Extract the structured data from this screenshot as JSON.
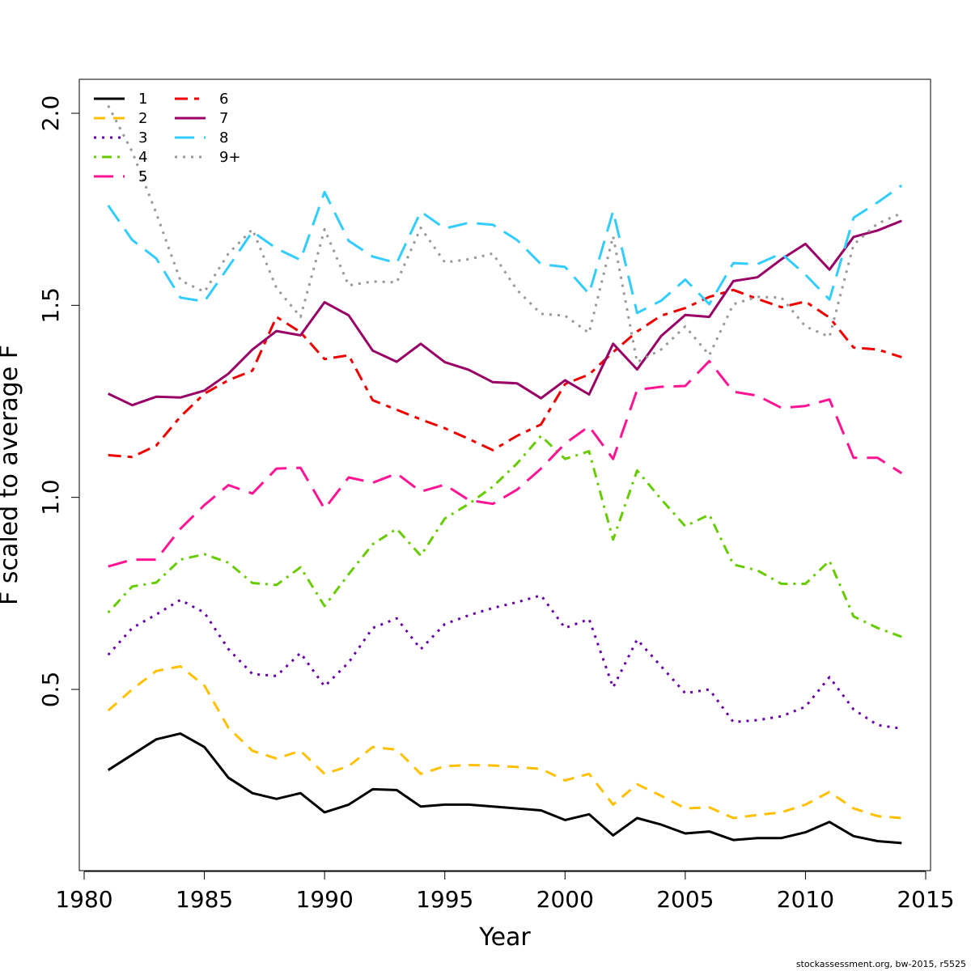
{
  "credit": "stockassessment.org, bw-2015, r5525",
  "chart_data": {
    "type": "line",
    "xlabel": "Year",
    "ylabel": "F scaled to average F",
    "xlim": [
      1980,
      2015
    ],
    "ylim": [
      0.05,
      2.1
    ],
    "x_ticks": [
      1980,
      1985,
      1990,
      1995,
      2000,
      2005,
      2010,
      2015
    ],
    "y_ticks": [
      0.5,
      1.0,
      1.5,
      2.0
    ],
    "x_tick_labels": [
      "1980",
      "1985",
      "1990",
      "1995",
      "2000",
      "2005",
      "2010",
      "2015"
    ],
    "y_tick_labels": [
      "0.5",
      "1.0",
      "1.5",
      "2.0"
    ],
    "legend_position": "top-left",
    "x": [
      1981,
      1982,
      1983,
      1984,
      1985,
      1986,
      1987,
      1988,
      1989,
      1990,
      1991,
      1992,
      1993,
      1994,
      1995,
      1996,
      1997,
      1998,
      1999,
      2000,
      2001,
      2002,
      2003,
      2004,
      2005,
      2006,
      2007,
      2008,
      2009,
      2010,
      2011,
      2012,
      2013,
      2014
    ],
    "series": [
      {
        "name": "1",
        "color": "#000000",
        "dash": "solid",
        "values": [
          0.29,
          0.33,
          0.37,
          0.385,
          0.35,
          0.27,
          0.23,
          0.215,
          0.23,
          0.18,
          0.2,
          0.24,
          0.238,
          0.195,
          0.2,
          0.2,
          0.195,
          0.19,
          0.185,
          0.16,
          0.175,
          0.12,
          0.165,
          0.148,
          0.125,
          0.13,
          0.108,
          0.113,
          0.113,
          0.128,
          0.155,
          0.118,
          0.105,
          0.1
        ]
      },
      {
        "name": "2",
        "color": "#FFC000",
        "dash": "dashed",
        "values": [
          0.445,
          0.5,
          0.548,
          0.56,
          0.51,
          0.4,
          0.34,
          0.32,
          0.34,
          0.28,
          0.3,
          0.35,
          0.343,
          0.28,
          0.3,
          0.303,
          0.302,
          0.298,
          0.293,
          0.263,
          0.28,
          0.2,
          0.253,
          0.223,
          0.19,
          0.193,
          0.165,
          0.173,
          0.18,
          0.2,
          0.233,
          0.19,
          0.17,
          0.165
        ]
      },
      {
        "name": "3",
        "color": "#6A00A8",
        "dash": "dotted",
        "values": [
          0.59,
          0.66,
          0.695,
          0.733,
          0.7,
          0.605,
          0.54,
          0.535,
          0.595,
          0.508,
          0.57,
          0.66,
          0.685,
          0.605,
          0.67,
          0.693,
          0.712,
          0.727,
          0.745,
          0.66,
          0.683,
          0.505,
          0.63,
          0.56,
          0.49,
          0.5,
          0.415,
          0.42,
          0.43,
          0.455,
          0.532,
          0.448,
          0.407,
          0.398
        ]
      },
      {
        "name": "4",
        "color": "#66CC00",
        "dash": "dotdash",
        "values": [
          0.7,
          0.768,
          0.778,
          0.838,
          0.852,
          0.83,
          0.777,
          0.772,
          0.818,
          0.717,
          0.8,
          0.878,
          0.918,
          0.848,
          0.945,
          0.983,
          1.028,
          1.088,
          1.16,
          1.1,
          1.12,
          0.89,
          1.07,
          0.995,
          0.925,
          0.955,
          0.825,
          0.81,
          0.775,
          0.775,
          0.835,
          0.69,
          0.66,
          0.637
        ]
      },
      {
        "name": "5",
        "color": "#FF1493",
        "dash": "longdash",
        "values": [
          0.82,
          0.838,
          0.838,
          0.918,
          0.98,
          1.032,
          1.01,
          1.075,
          1.077,
          0.97,
          1.052,
          1.038,
          1.062,
          1.015,
          1.033,
          0.993,
          0.983,
          1.02,
          1.075,
          1.14,
          1.185,
          1.1,
          1.28,
          1.288,
          1.29,
          1.355,
          1.275,
          1.265,
          1.233,
          1.238,
          1.255,
          1.103,
          1.103,
          1.063
        ]
      },
      {
        "name": "6",
        "color": "#EE0000",
        "dash": "twodash",
        "values": [
          1.11,
          1.105,
          1.135,
          1.21,
          1.27,
          1.305,
          1.33,
          1.47,
          1.43,
          1.36,
          1.37,
          1.253,
          1.228,
          1.203,
          1.18,
          1.152,
          1.123,
          1.16,
          1.19,
          1.295,
          1.32,
          1.378,
          1.432,
          1.473,
          1.493,
          1.522,
          1.54,
          1.517,
          1.495,
          1.51,
          1.468,
          1.39,
          1.385,
          1.365
        ]
      },
      {
        "name": "7",
        "color": "#990066",
        "dash": "solid",
        "values": [
          1.27,
          1.24,
          1.262,
          1.26,
          1.278,
          1.322,
          1.385,
          1.433,
          1.422,
          1.508,
          1.474,
          1.382,
          1.353,
          1.4,
          1.352,
          1.332,
          1.3,
          1.297,
          1.258,
          1.305,
          1.268,
          1.4,
          1.333,
          1.42,
          1.475,
          1.47,
          1.563,
          1.573,
          1.62,
          1.66,
          1.593,
          1.678,
          1.695,
          1.72
        ]
      },
      {
        "name": "8",
        "color": "#33CCFF",
        "dash": "longdash",
        "values": [
          1.76,
          1.67,
          1.622,
          1.52,
          1.51,
          1.6,
          1.692,
          1.648,
          1.618,
          1.795,
          1.668,
          1.627,
          1.61,
          1.744,
          1.7,
          1.715,
          1.71,
          1.67,
          1.607,
          1.6,
          1.53,
          1.745,
          1.48,
          1.512,
          1.567,
          1.503,
          1.61,
          1.607,
          1.635,
          1.58,
          1.515,
          1.728,
          1.768,
          1.812
        ]
      },
      {
        "name": "9+",
        "color": "#999999",
        "dash": "dotted",
        "values": [
          2.02,
          1.9,
          1.74,
          1.565,
          1.535,
          1.635,
          1.698,
          1.545,
          1.47,
          1.698,
          1.552,
          1.562,
          1.56,
          1.702,
          1.612,
          1.62,
          1.635,
          1.54,
          1.478,
          1.473,
          1.428,
          1.68,
          1.352,
          1.385,
          1.445,
          1.37,
          1.503,
          1.522,
          1.52,
          1.445,
          1.418,
          1.658,
          1.713,
          1.74
        ]
      }
    ]
  }
}
